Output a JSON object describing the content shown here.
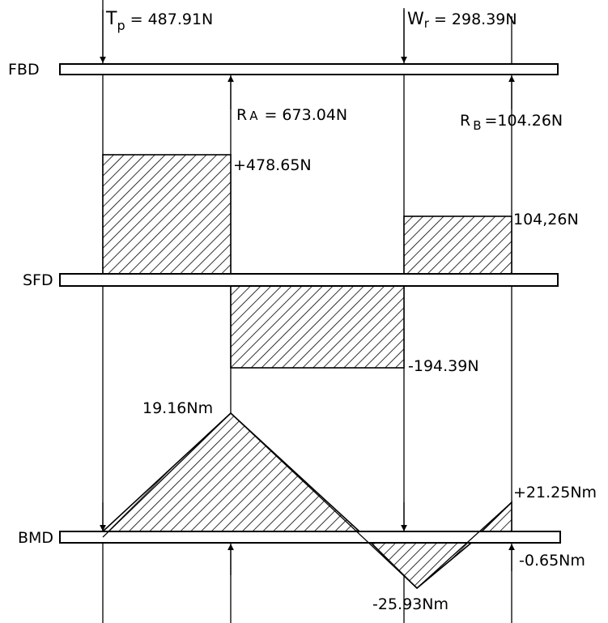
{
  "beams": {
    "fbd": "FBD",
    "sfd": "SFD",
    "bmd": "BMD"
  },
  "loads": {
    "tp_symbol": "T",
    "tp_sub": "p",
    "tp_value": "=  487.91N",
    "wr_symbol": "W",
    "wr_sub": "r",
    "wr_value": "= 298.39N"
  },
  "reactions": {
    "ra_symbol": "R",
    "ra_sub": "A",
    "ra_value": "= 673.04N",
    "rb_symbol": "R",
    "rb_sub": "B",
    "rb_value": "=104.26N"
  },
  "shear": {
    "max_positive": "+478.65N",
    "right_positive": "104,26N",
    "negative": "-194.39N"
  },
  "moment": {
    "max_positive": "19.16Nm",
    "right_positive": "+21.25Nm",
    "small_negative": "-0.65Nm",
    "min_negative": "-25.93Nm"
  }
}
